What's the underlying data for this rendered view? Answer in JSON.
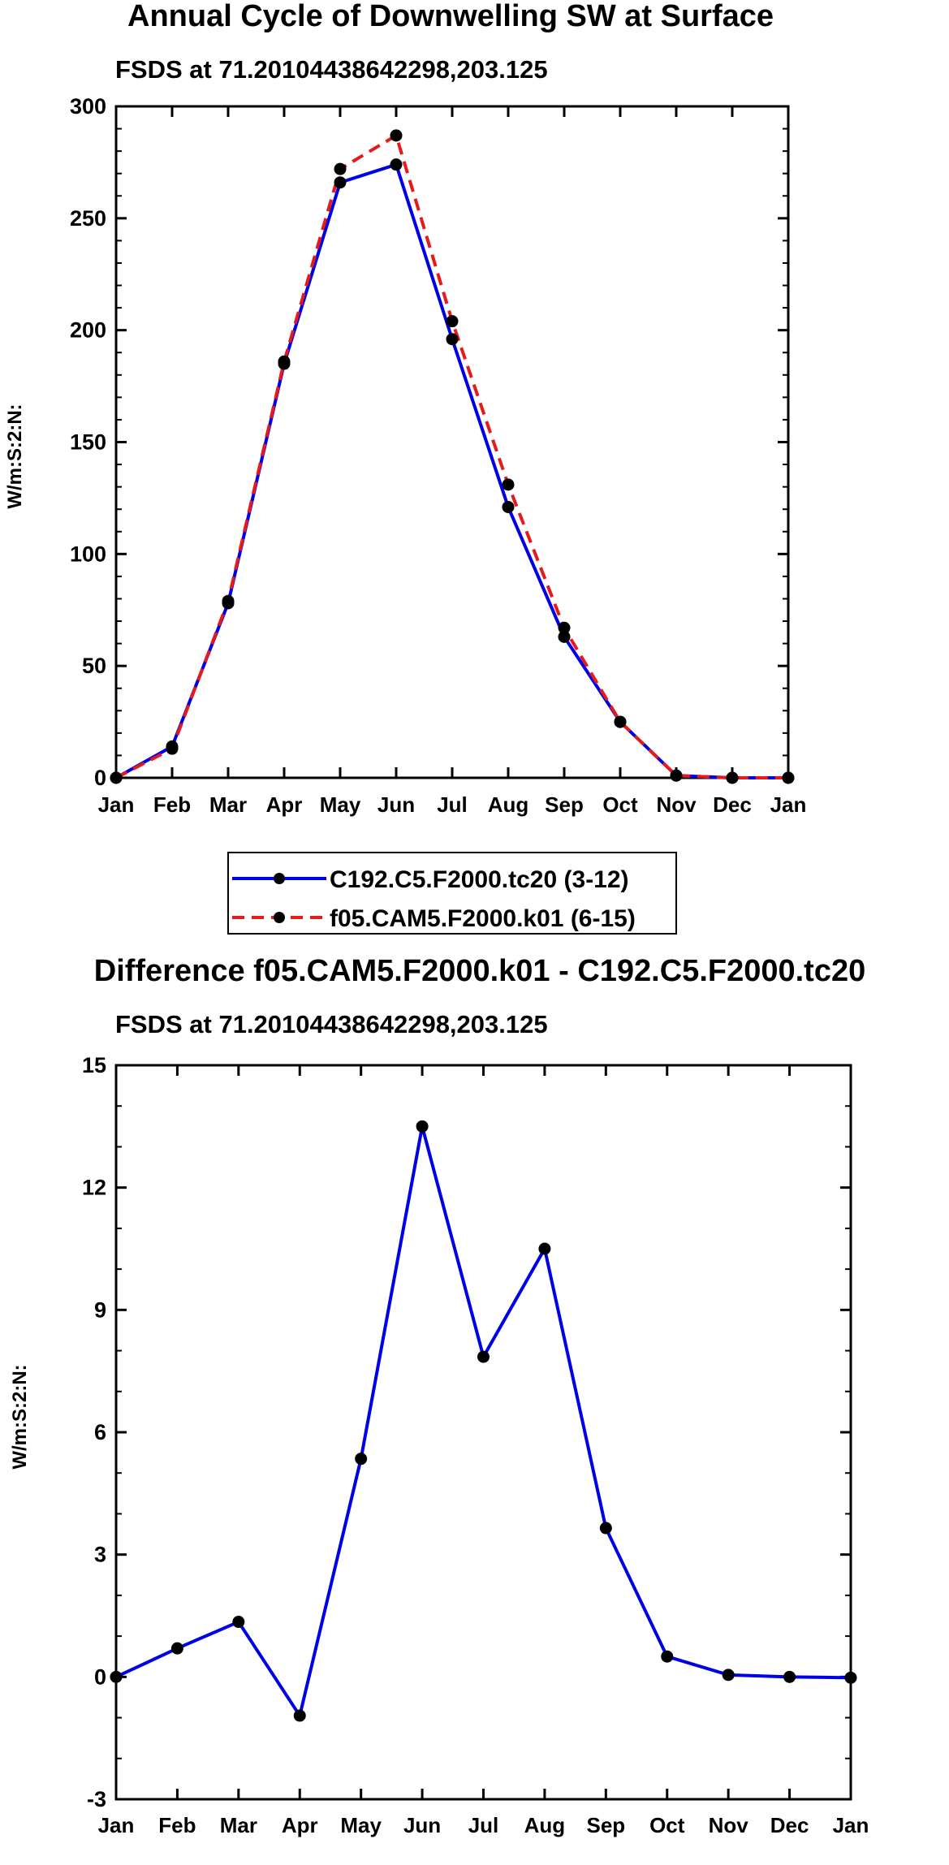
{
  "chart_data": [
    {
      "type": "line",
      "title": "Annual Cycle of Downwelling SW at Surface",
      "subtitle": "FSDS at 71.20104438642298,203.125",
      "xlabel": "",
      "ylabel": "W/m:S:2:N:",
      "categories": [
        "Jan",
        "Feb",
        "Mar",
        "Apr",
        "May",
        "Jun",
        "Jul",
        "Aug",
        "Sep",
        "Oct",
        "Nov",
        "Dec",
        "Jan"
      ],
      "ylim": [
        0,
        300
      ],
      "yticks": [
        0,
        50,
        100,
        150,
        200,
        250,
        300
      ],
      "ytick_labels": [
        "0",
        "50",
        "100",
        "150",
        "200",
        "250",
        "300"
      ],
      "grid": false,
      "legend_position": "bottom",
      "series": [
        {
          "name": "C192.C5.F2000.tc20 (3-12)",
          "color": "#0000e6",
          "dash": "solid",
          "values": [
            0,
            14,
            78,
            185,
            266,
            274,
            196,
            121,
            63,
            25,
            1,
            0,
            0
          ]
        },
        {
          "name": "f05.CAM5.F2000.k01 (6-15)",
          "color": "#e61a1a",
          "dash": "dashed",
          "values": [
            0,
            13,
            79,
            186,
            272,
            287,
            204,
            131,
            67,
            25,
            1,
            0,
            0
          ]
        }
      ]
    },
    {
      "type": "line",
      "title": "Difference f05.CAM5.F2000.k01 - C192.C5.F2000.tc20",
      "subtitle": "FSDS at 71.20104438642298,203.125",
      "xlabel": "",
      "ylabel": "W/m:S:2:N:",
      "categories": [
        "Jan",
        "Feb",
        "Mar",
        "Apr",
        "May",
        "Jun",
        "Jul",
        "Aug",
        "Sep",
        "Oct",
        "Nov",
        "Dec",
        "Jan"
      ],
      "ylim": [
        -3,
        15
      ],
      "yticks": [
        -3,
        0,
        3,
        6,
        9,
        12,
        15
      ],
      "ytick_labels": [
        "-3",
        "0",
        "3",
        "6",
        "9",
        "12",
        "15"
      ],
      "grid": false,
      "series": [
        {
          "name": "Difference",
          "color": "#0000e6",
          "dash": "solid",
          "values": [
            0,
            0.7,
            1.35,
            -0.95,
            5.35,
            13.5,
            7.85,
            10.5,
            3.65,
            0.5,
            0.05,
            0.0,
            -0.02
          ]
        }
      ]
    }
  ]
}
